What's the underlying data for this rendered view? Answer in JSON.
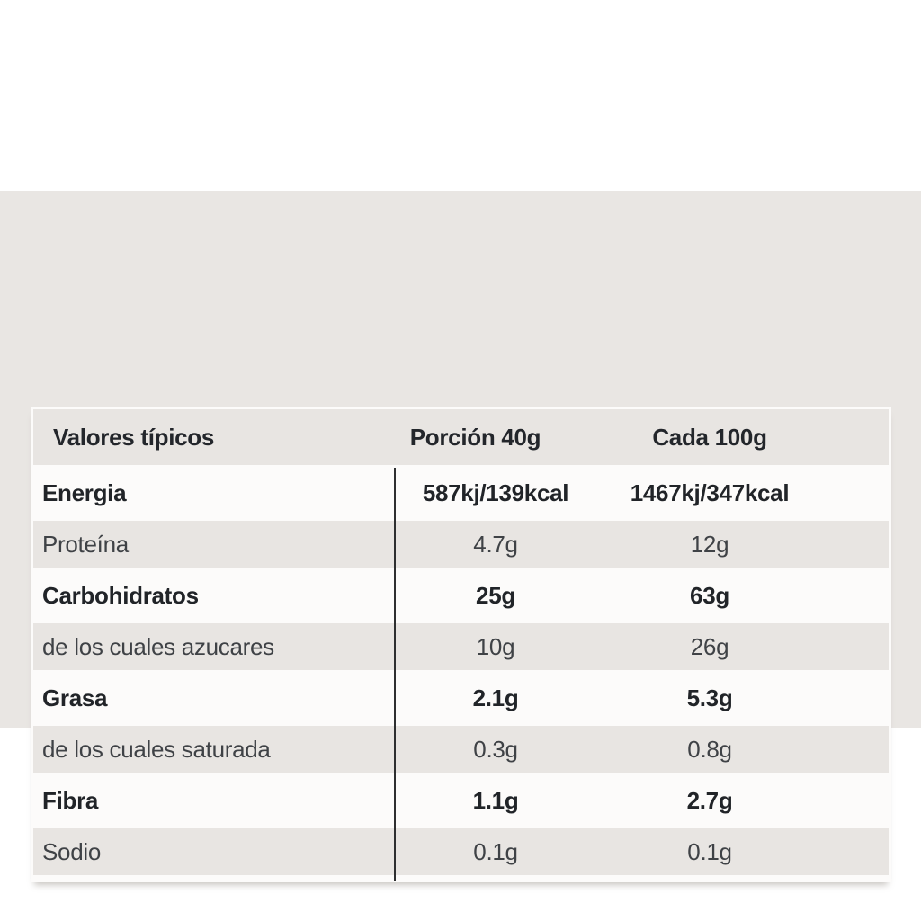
{
  "table": {
    "header": [
      "Valores típicos",
      "Porción 40g",
      "Cada 100g"
    ],
    "rows": [
      {
        "label": "Energia",
        "per_40g": "587kj/139kcal",
        "per_100g": "1467kj/347kcal",
        "bold": true
      },
      {
        "label": "Proteína",
        "per_40g": "4.7g",
        "per_100g": "12g",
        "bold": false
      },
      {
        "label": "Carbohidratos",
        "per_40g": "25g",
        "per_100g": "63g",
        "bold": true
      },
      {
        "label": "de los cuales azucares",
        "per_40g": "10g",
        "per_100g": "26g",
        "bold": false
      },
      {
        "label": "Grasa",
        "per_40g": "2.1g",
        "per_100g": "5.3g",
        "bold": true
      },
      {
        "label": "de los cuales saturada",
        "per_40g": "0.3g",
        "per_100g": "0.8g",
        "bold": false
      },
      {
        "label": "Fibra",
        "per_40g": "1.1g",
        "per_100g": "2.7g",
        "bold": true
      },
      {
        "label": "Sodio",
        "per_40g": "0.1g",
        "per_100g": "0.1g",
        "bold": false
      }
    ]
  },
  "colors": {
    "page_background": "#ffffff",
    "band_background": "#e9e6e3",
    "card_background": "#fcfbfa",
    "row_alt_background": "#e8e5e2",
    "divider": "#2e2f30",
    "text_bold": "#212428",
    "text_regular": "#3f4246"
  }
}
